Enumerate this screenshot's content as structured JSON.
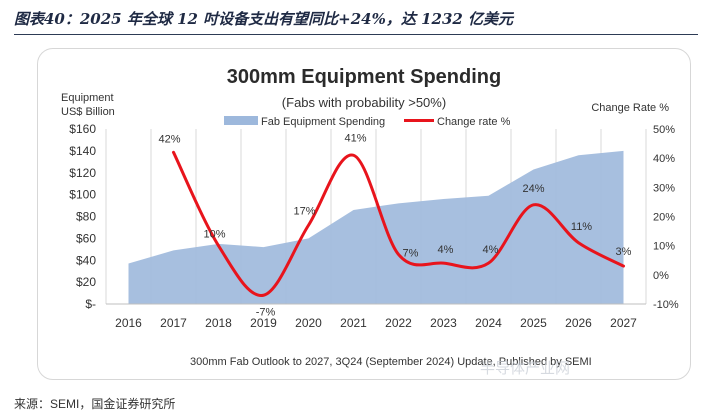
{
  "figure_caption": "图表40：2025 年全球 12 吋设备支出有望同比+24%，达 1232 亿美元",
  "source_note": "来源：SEMI，国金证券研究所",
  "watermark": "半导体产业网",
  "chart_data": {
    "type": "area+line",
    "title": "300mm Equipment Spending",
    "subtitle": "(Fabs with probability >50%)",
    "left_axis_label_line1": "Equipment",
    "left_axis_label_line2": "US$ Billion",
    "right_axis_label": "Change Rate %",
    "footnote": "300mm Fab Outlook to 2027, 3Q24 (September 2024) Update, Published by SEMI",
    "categories": [
      "2016",
      "2017",
      "2018",
      "2019",
      "2020",
      "2021",
      "2022",
      "2023",
      "2024",
      "2025",
      "2026",
      "2027"
    ],
    "y_left_ticks": [
      "$-",
      "$20",
      "$40",
      "$60",
      "$80",
      "$100",
      "$120",
      "$140",
      "$160"
    ],
    "y_left_lim": [
      0,
      160
    ],
    "y_right_ticks": [
      "-10%",
      "0%",
      "10%",
      "20%",
      "30%",
      "40%",
      "50%"
    ],
    "y_right_lim": [
      -10,
      50
    ],
    "legend": {
      "position": "top-center",
      "area_label": "Fab Equipment Spending",
      "line_label": "Change rate %"
    },
    "series": [
      {
        "name": "Fab Equipment Spending",
        "kind": "area",
        "axis": "left",
        "color": "#9db8dc",
        "values": [
          37,
          49,
          55,
          52,
          60,
          86,
          92,
          96,
          99,
          123,
          136,
          140
        ]
      },
      {
        "name": "Change rate %",
        "kind": "line",
        "axis": "right",
        "color": "#e8141c",
        "values": [
          null,
          42,
          10,
          -7,
          17,
          41,
          7,
          4,
          4,
          24,
          11,
          3
        ],
        "labels": [
          "",
          "42%",
          "10%",
          "-7%",
          "17%",
          "41%",
          "7%",
          "4%",
          "4%",
          "24%",
          "11%",
          "3%"
        ]
      }
    ],
    "grid": "vertical"
  }
}
